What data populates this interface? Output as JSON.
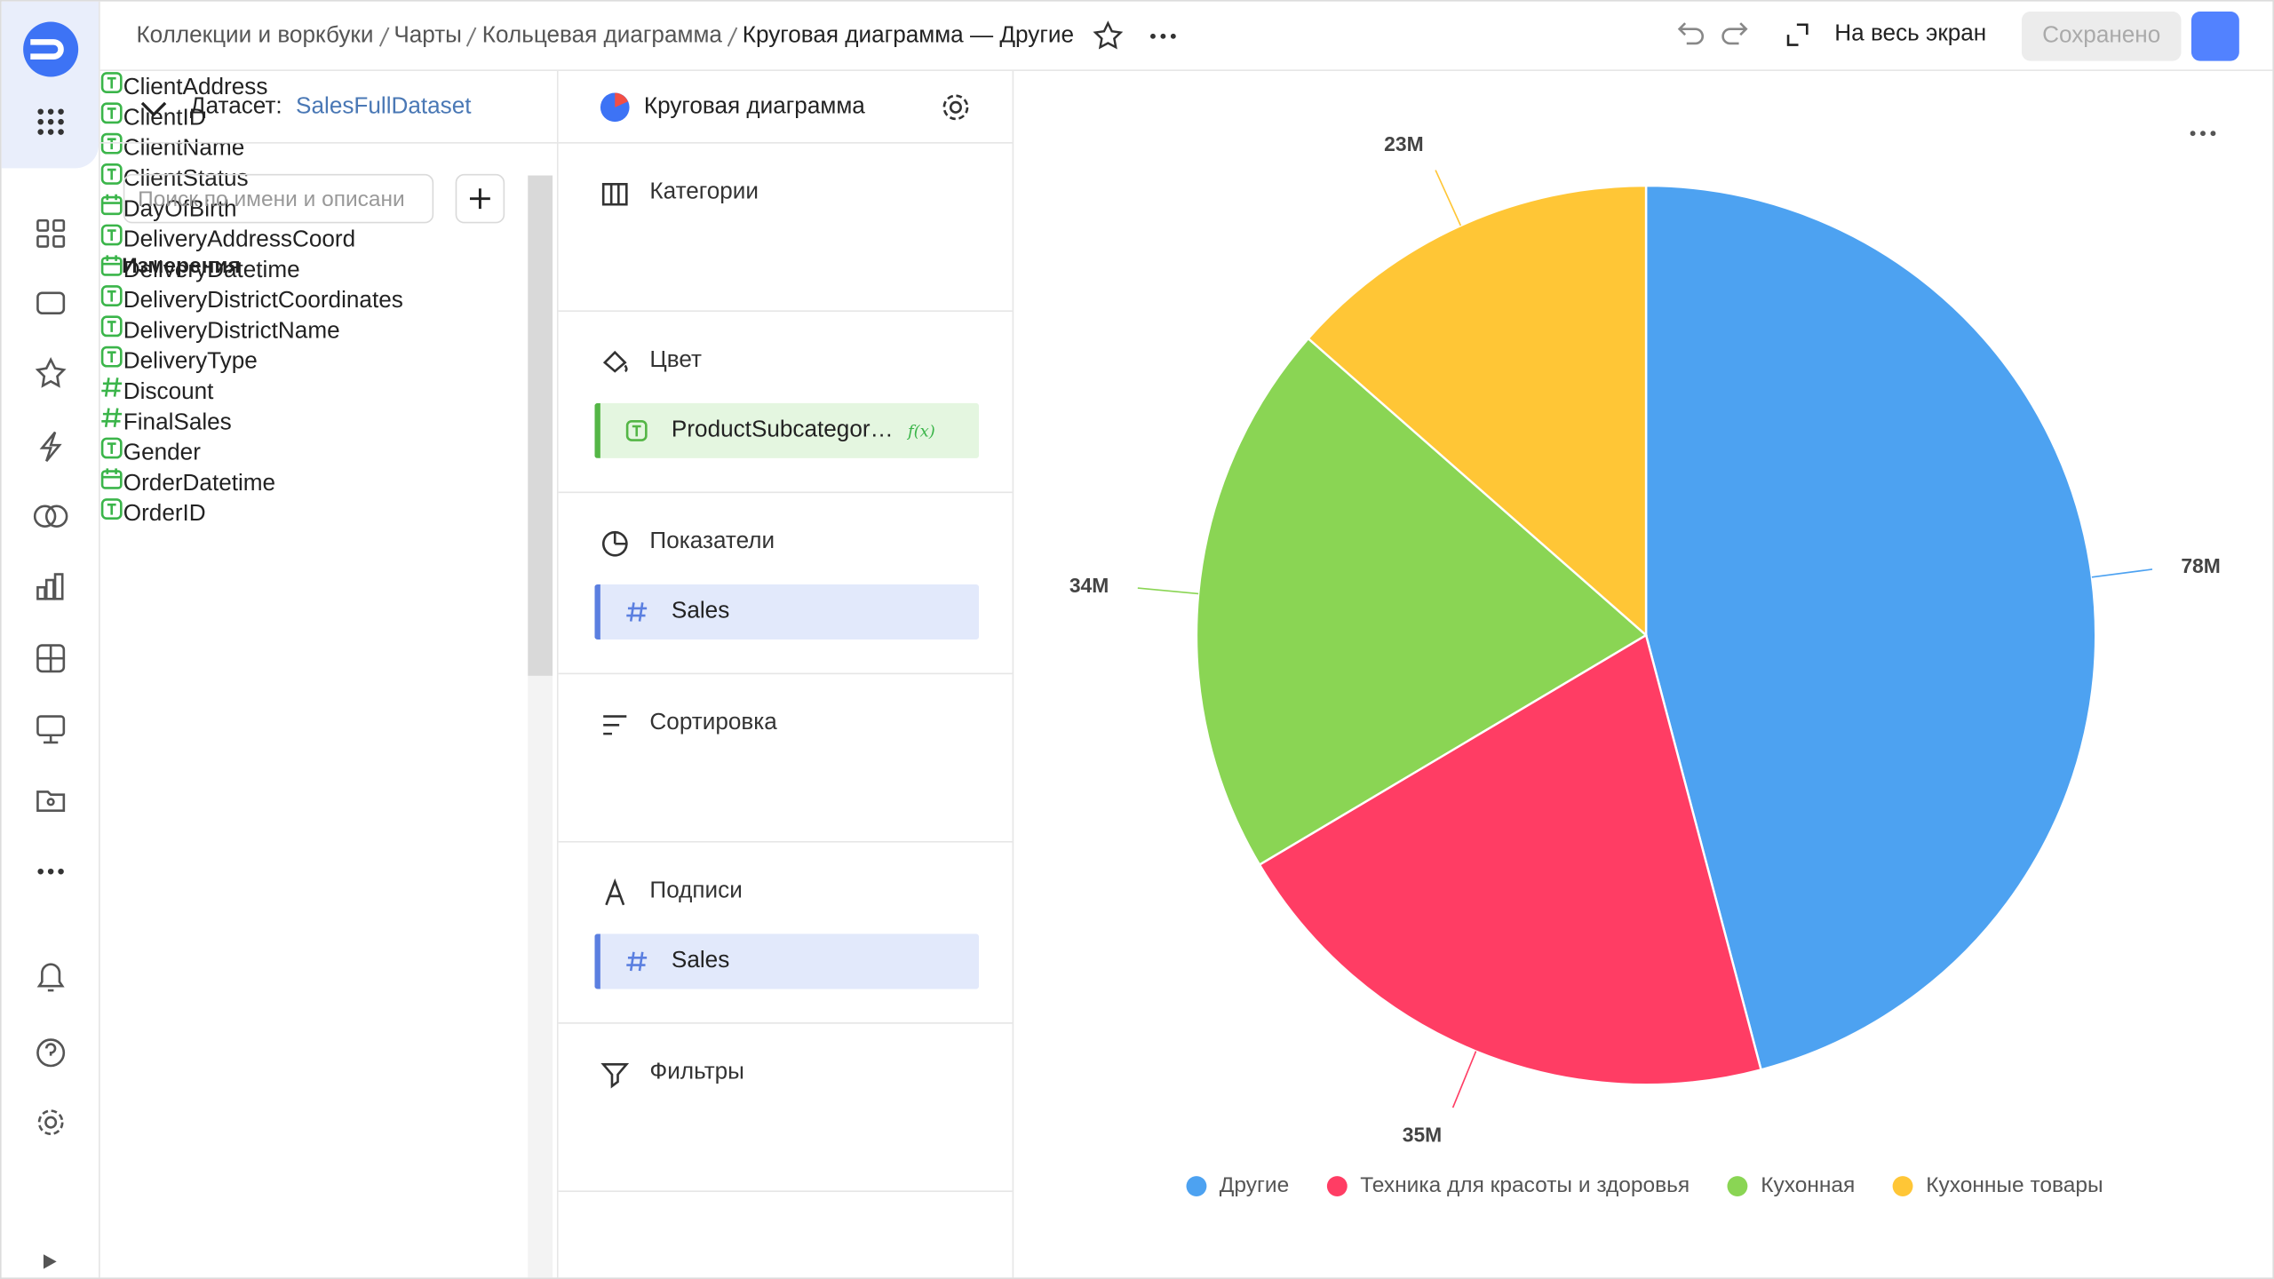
{
  "breadcrumbs": [
    "Коллекции и воркбуки",
    "Чарты",
    "Кольцевая диаграмма",
    "Круговая диаграмма — Другие"
  ],
  "toolbar": {
    "fullscreen": "На весь экран",
    "save": "Сохранено"
  },
  "dataset": {
    "label": "Датасет:",
    "name": "SalesFullDataset",
    "search_placeholder": "Поиск по имени и описани",
    "section": "Измерения",
    "fields": [
      {
        "name": "ClientAddress",
        "type": "text"
      },
      {
        "name": "ClientID",
        "type": "text"
      },
      {
        "name": "ClientName",
        "type": "text"
      },
      {
        "name": "ClientStatus",
        "type": "text"
      },
      {
        "name": "DayOfBirth",
        "type": "date"
      },
      {
        "name": "DeliveryAddressCoord",
        "type": "text"
      },
      {
        "name": "DeliveryDatetime",
        "type": "date"
      },
      {
        "name": "DeliveryDistrictCoordinates",
        "type": "text"
      },
      {
        "name": "DeliveryDistrictName",
        "type": "text"
      },
      {
        "name": "DeliveryType",
        "type": "text"
      },
      {
        "name": "Discount",
        "type": "number"
      },
      {
        "name": "FinalSales",
        "type": "number"
      },
      {
        "name": "Gender",
        "type": "text"
      },
      {
        "name": "OrderDatetime",
        "type": "date"
      },
      {
        "name": "OrderID",
        "type": "text"
      }
    ]
  },
  "visualization": {
    "name": "Круговая диаграмма",
    "sections": [
      {
        "title": "Категории",
        "icon": "columns",
        "items": []
      },
      {
        "title": "Цвет",
        "icon": "color",
        "items": [
          {
            "name": "ProductSubcategor…",
            "type": "text",
            "badge": "f(x)"
          }
        ]
      },
      {
        "title": "Показатели",
        "icon": "measure",
        "items": [
          {
            "name": "Sales",
            "type": "number"
          }
        ]
      },
      {
        "title": "Сортировка",
        "icon": "sort",
        "items": []
      },
      {
        "title": "Подписи",
        "icon": "labels",
        "items": [
          {
            "name": "Sales",
            "type": "number"
          }
        ]
      },
      {
        "title": "Фильтры",
        "icon": "filter",
        "items": []
      }
    ]
  },
  "chart_data": {
    "type": "pie",
    "categories": [
      "Другие",
      "Техника для красоты и здоровья",
      "Кухонная",
      "Кухонные товары"
    ],
    "values": [
      78,
      35,
      34,
      23
    ],
    "value_labels": [
      "78M",
      "35M",
      "34M",
      "23M"
    ],
    "colors": [
      "#4da2f1",
      "#ff3d64",
      "#8ad554",
      "#ffc636"
    ]
  }
}
